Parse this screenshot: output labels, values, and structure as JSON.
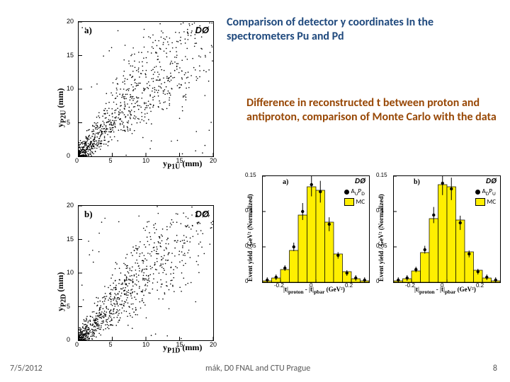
{
  "captions": {
    "top": "Comparison of detector y coordinates\nIn the spectrometers Pu and Pd",
    "middle": "Difference in reconstructed  t between proton and antiproton,\ncomparison of Monte Carlo with the data"
  },
  "footer": {
    "date": "7/5/2012",
    "center": "mák, D0 FNAL and CTU Prague",
    "page": "8"
  },
  "colors": {
    "caption1": "#1f497d",
    "caption2": "#984806",
    "mc_fill": "#ffef00",
    "data_marker": "#000000",
    "axis": "#000000",
    "tick": "#000000"
  },
  "scatter_a": {
    "panel_label": "a)",
    "logo": "DØ",
    "xlabel": "y_{P1U} (mm)",
    "ylabel": "y_{P2U} (mm)",
    "xlim": [
      0,
      20
    ],
    "ylim": [
      0,
      20
    ],
    "xticks": [
      0,
      5,
      10,
      15,
      20
    ],
    "yticks": [
      0,
      5,
      10,
      15,
      20
    ],
    "point_radius": 0.8
  },
  "scatter_b": {
    "panel_label": "b)",
    "logo": "DØ",
    "xlabel": "y_{P1D} (mm)",
    "ylabel": "y_{P2D} (mm)",
    "xlim": [
      0,
      20
    ],
    "ylim": [
      0,
      20
    ],
    "xticks": [
      0,
      5,
      10,
      15,
      20
    ],
    "yticks": [
      0,
      5,
      10,
      15,
      20
    ],
    "point_radius": 0.8
  },
  "hist_a": {
    "panel_label": "a)",
    "logo": "DØ",
    "xlabel": "|t|_{proton} - |t|_{pbar}  (GeV²)",
    "ylabel": "Event yield / GeV² (Normalized)",
    "legend_data": "A_{U}P_{D}",
    "legend_mc": "MC",
    "xlim": [
      -0.3,
      0.3
    ],
    "ylim": [
      0,
      0.15
    ],
    "xticks": [
      -0.2,
      0,
      0.2
    ],
    "yticks": [
      0,
      0.05,
      0.1,
      0.15
    ],
    "bin_centers": [
      -0.275,
      -0.225,
      -0.175,
      -0.125,
      -0.075,
      -0.025,
      0.025,
      0.075,
      0.125,
      0.175,
      0.225,
      0.275
    ],
    "mc": [
      0.002,
      0.006,
      0.018,
      0.045,
      0.095,
      0.135,
      0.13,
      0.085,
      0.04,
      0.015,
      0.005,
      0.002
    ],
    "data": [
      0.003,
      0.007,
      0.02,
      0.05,
      0.1,
      0.138,
      0.128,
      0.082,
      0.038,
      0.013,
      0.006,
      0.003
    ],
    "bar_width": 0.05
  },
  "hist_b": {
    "panel_label": "b)",
    "logo": "DØ",
    "xlabel": "|t|_{proton} - |t|_{pbar}  (GeV²)",
    "ylabel": "Event yield / GeV² (Normalized)",
    "legend_data": "A_{D}P_{U}",
    "legend_mc": "MC",
    "xlim": [
      -0.3,
      0.3
    ],
    "ylim": [
      0,
      0.15
    ],
    "xticks": [
      -0.2,
      0,
      0.2
    ],
    "yticks": [
      0,
      0.05,
      0.1,
      0.15
    ],
    "bin_centers": [
      -0.275,
      -0.225,
      -0.175,
      -0.125,
      -0.075,
      -0.025,
      0.025,
      0.075,
      0.125,
      0.175,
      0.225,
      0.275
    ],
    "mc": [
      0.002,
      0.005,
      0.016,
      0.042,
      0.09,
      0.138,
      0.135,
      0.088,
      0.043,
      0.017,
      0.006,
      0.002
    ],
    "data": [
      0.003,
      0.006,
      0.018,
      0.046,
      0.095,
      0.14,
      0.132,
      0.084,
      0.04,
      0.015,
      0.007,
      0.003
    ],
    "bar_width": 0.05
  }
}
